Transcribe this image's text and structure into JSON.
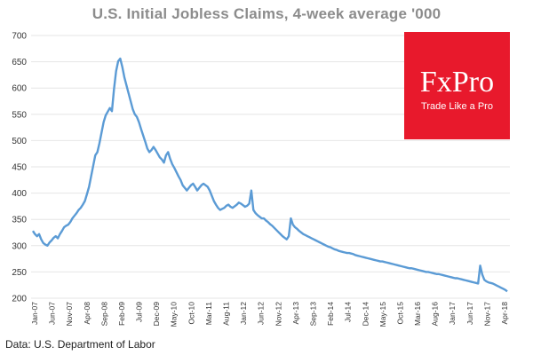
{
  "chart_data": {
    "type": "line",
    "title": "U.S. Initial Jobless Claims,  4-week average '000",
    "source": "Data: U.S. Department of Labor",
    "ylim": [
      200,
      700
    ],
    "yticks": [
      200,
      250,
      300,
      350,
      400,
      450,
      500,
      550,
      600,
      650,
      700
    ],
    "grid": true,
    "line_color": "#5b9bd5",
    "xticks": [
      "Jan-07",
      "Jun-07",
      "Nov-07",
      "Apr-08",
      "Sep-08",
      "Feb-09",
      "Jul-09",
      "Dec-09",
      "May-10",
      "Oct-10",
      "Mar-11",
      "Aug-11",
      "Jan-12",
      "Jun-12",
      "Nov-12",
      "Apr-13",
      "Sep-13",
      "Feb-14",
      "Jul-14",
      "Dec-14",
      "May-15",
      "Oct-15",
      "Mar-16",
      "Aug-16",
      "Jan-17",
      "Jun-17",
      "Nov-17",
      "Apr-18"
    ],
    "series": [
      {
        "values": [
          328,
          322,
          318,
          322,
          312,
          305,
          302,
          300,
          306,
          310,
          315,
          318,
          314,
          322,
          328,
          335,
          338,
          340,
          345,
          352,
          357,
          362,
          368,
          372,
          378,
          385,
          398,
          412,
          432,
          452,
          472,
          478,
          495,
          515,
          535,
          548,
          555,
          562,
          556,
          598,
          632,
          651,
          656,
          640,
          620,
          605,
          590,
          575,
          560,
          550,
          545,
          535,
          522,
          510,
          498,
          485,
          478,
          482,
          488,
          482,
          475,
          468,
          464,
          458,
          472,
          478,
          465,
          455,
          448,
          440,
          432,
          425,
          415,
          410,
          405,
          410,
          415,
          418,
          412,
          405,
          410,
          415,
          418,
          415,
          412,
          405,
          395,
          385,
          378,
          372,
          368,
          370,
          372,
          376,
          378,
          374,
          372,
          375,
          378,
          382,
          380,
          377,
          374,
          376,
          380,
          405,
          368,
          362,
          358,
          355,
          352,
          352,
          348,
          345,
          341,
          338,
          334,
          330,
          326,
          322,
          318,
          315,
          312,
          318,
          352,
          340,
          335,
          332,
          328,
          325,
          322,
          320,
          318,
          316,
          314,
          312,
          310,
          308,
          306,
          304,
          302,
          300,
          298,
          297,
          295,
          293,
          292,
          290,
          289,
          288,
          287,
          286,
          286,
          285,
          284,
          282,
          281,
          280,
          279,
          278,
          277,
          276,
          275,
          274,
          273,
          272,
          271,
          270,
          270,
          269,
          268,
          267,
          266,
          265,
          264,
          263,
          262,
          261,
          260,
          259,
          258,
          257,
          257,
          256,
          255,
          254,
          253,
          252,
          251,
          250,
          250,
          249,
          248,
          247,
          246,
          246,
          245,
          244,
          243,
          242,
          241,
          240,
          239,
          238,
          238,
          237,
          236,
          235,
          234,
          233,
          232,
          231,
          230,
          229,
          228,
          262,
          245,
          235,
          232,
          230,
          229,
          228,
          226,
          224,
          222,
          220,
          218,
          216,
          213
        ]
      }
    ]
  },
  "brand": {
    "logo": "FxPro",
    "tagline": "Trade Like a Pro",
    "color": "#e8192c"
  }
}
